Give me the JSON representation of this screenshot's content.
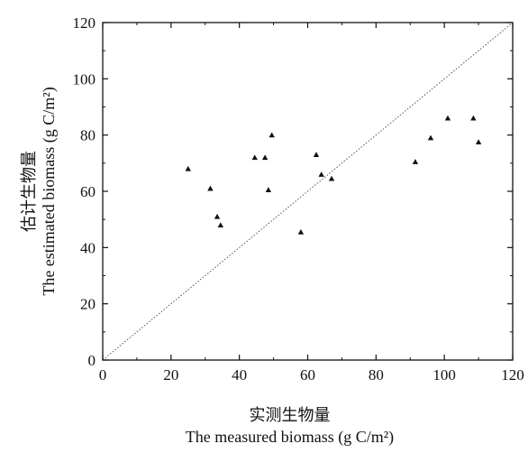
{
  "chart_data": {
    "type": "scatter",
    "title": "",
    "xlabel_zh": "实测生物量",
    "xlabel_en": "The measured biomass (g C/m²)",
    "ylabel_zh": "估计生物量",
    "ylabel_en": "The estimated biomass (g C/m²)",
    "xlim": [
      0,
      120
    ],
    "ylim": [
      0,
      120
    ],
    "xticks": [
      0,
      20,
      40,
      60,
      80,
      100,
      120
    ],
    "yticks": [
      0,
      20,
      40,
      60,
      80,
      100,
      120
    ],
    "grid": false,
    "reference_line": {
      "type": "1:1",
      "from": [
        0,
        0
      ],
      "to": [
        120,
        120
      ],
      "style": "dotted"
    },
    "marker": "triangle",
    "marker_color": "#111111",
    "points": [
      {
        "x": 25,
        "y": 68
      },
      {
        "x": 31.5,
        "y": 61
      },
      {
        "x": 33.5,
        "y": 51
      },
      {
        "x": 34.5,
        "y": 48
      },
      {
        "x": 44.5,
        "y": 72
      },
      {
        "x": 47.5,
        "y": 72
      },
      {
        "x": 48.5,
        "y": 60.5
      },
      {
        "x": 49.5,
        "y": 80
      },
      {
        "x": 58,
        "y": 45.5
      },
      {
        "x": 62.5,
        "y": 73
      },
      {
        "x": 64,
        "y": 66
      },
      {
        "x": 67,
        "y": 64.5
      },
      {
        "x": 91.5,
        "y": 70.5
      },
      {
        "x": 96,
        "y": 79
      },
      {
        "x": 101,
        "y": 86
      },
      {
        "x": 108.5,
        "y": 86
      },
      {
        "x": 110,
        "y": 77.5
      }
    ]
  }
}
